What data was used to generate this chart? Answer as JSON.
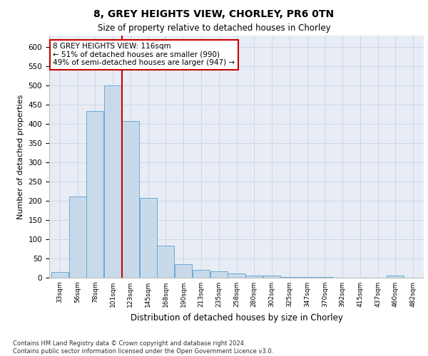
{
  "title1": "8, GREY HEIGHTS VIEW, CHORLEY, PR6 0TN",
  "title2": "Size of property relative to detached houses in Chorley",
  "xlabel": "Distribution of detached houses by size in Chorley",
  "ylabel": "Number of detached properties",
  "annotation_text": "8 GREY HEIGHTS VIEW: 116sqm\n← 51% of detached houses are smaller (990)\n49% of semi-detached houses are larger (947) →",
  "footnote": "Contains HM Land Registry data © Crown copyright and database right 2024.\nContains public sector information licensed under the Open Government Licence v3.0.",
  "bar_color": "#c8daea",
  "bar_edge_color": "#6aaad4",
  "vline_color": "#cc0000",
  "annotation_box_color": "#cc0000",
  "tick_labels": [
    "33sqm",
    "56sqm",
    "78sqm",
    "101sqm",
    "123sqm",
    "145sqm",
    "168sqm",
    "190sqm",
    "213sqm",
    "235sqm",
    "258sqm",
    "280sqm",
    "302sqm",
    "325sqm",
    "347sqm",
    "370sqm",
    "392sqm",
    "415sqm",
    "437sqm",
    "460sqm",
    "482sqm"
  ],
  "values": [
    15,
    212,
    434,
    500,
    408,
    207,
    83,
    36,
    20,
    17,
    12,
    6,
    5,
    1,
    1,
    1,
    0,
    0,
    0,
    5,
    0
  ],
  "vline_bar_index": 3,
  "ylim": [
    0,
    630
  ],
  "yticks": [
    0,
    50,
    100,
    150,
    200,
    250,
    300,
    350,
    400,
    450,
    500,
    550,
    600
  ],
  "grid_color": "#cdd6e8",
  "bg_color": "#e8edf5"
}
